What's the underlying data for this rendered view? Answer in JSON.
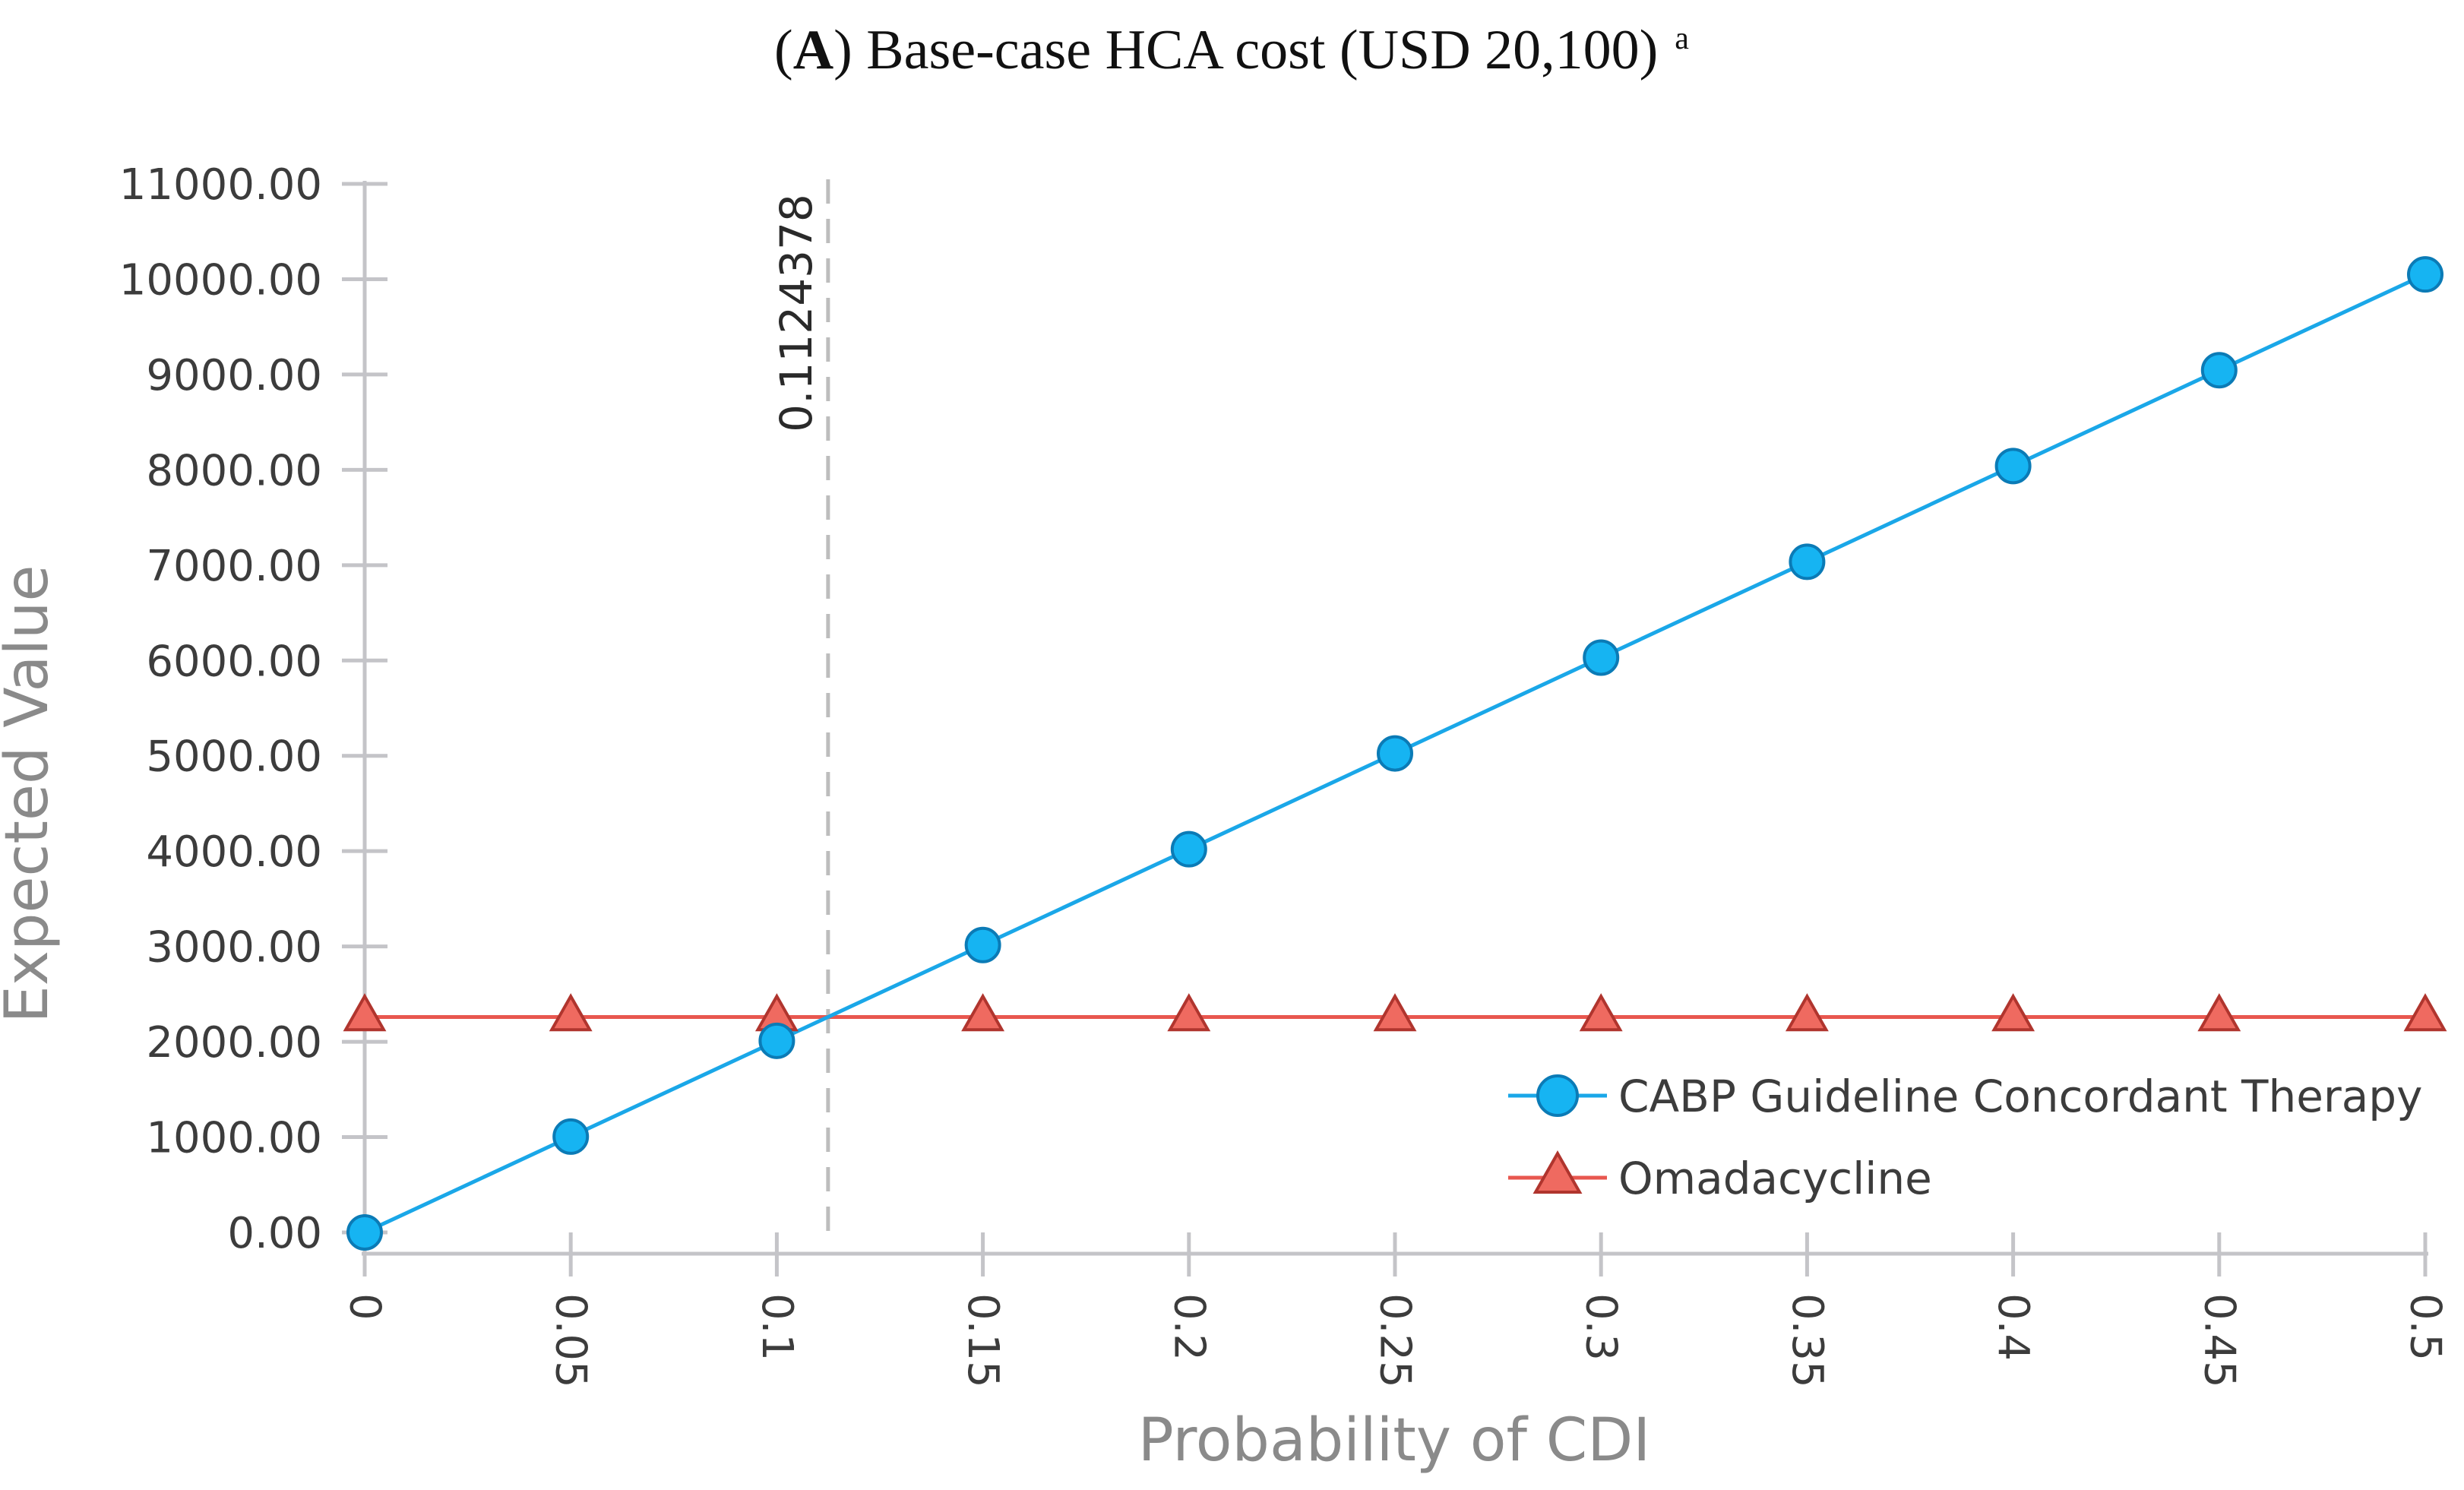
{
  "chart_data": {
    "type": "line",
    "title": {
      "prefix": "(",
      "bold": "A",
      "rest": ") Base-case HCA cost (USD 20,100)",
      "superscript": "a"
    },
    "xlabel": "Probability of CDI",
    "ylabel": "Expected Value",
    "x": [
      0,
      0.05,
      0.1,
      0.15,
      0.2,
      0.25,
      0.3,
      0.35,
      0.4,
      0.45,
      0.5
    ],
    "x_tick_labels": [
      "0",
      "0.05",
      "0.1",
      "0.15",
      "0.2",
      "0.25",
      "0.3",
      "0.35",
      "0.4",
      "0.45",
      "0.5"
    ],
    "xlim": [
      0,
      0.5
    ],
    "ylim": [
      0,
      11000
    ],
    "y_ticks": [
      0,
      1000,
      2000,
      3000,
      4000,
      5000,
      6000,
      7000,
      8000,
      9000,
      10000,
      11000
    ],
    "y_tick_labels": [
      "0.00",
      "1000.00",
      "2000.00",
      "3000.00",
      "4000.00",
      "5000.00",
      "6000.00",
      "7000.00",
      "8000.00",
      "9000.00",
      "10000.00",
      "11000.00"
    ],
    "grid": false,
    "legend_position": "bottom-right",
    "series": [
      {
        "name": "CABP Guideline Concordant Therapy",
        "marker": "circle",
        "color": "#1aa7e8",
        "fill": "#16b4f2",
        "values": [
          0,
          1005,
          2010,
          3015,
          4020,
          5025,
          6030,
          7035,
          8040,
          9045,
          10050
        ]
      },
      {
        "name": "Omadacycline",
        "marker": "triangle",
        "color": "#e8574f",
        "fill": "#ef6a60",
        "values": [
          2260,
          2260,
          2260,
          2260,
          2260,
          2260,
          2260,
          2260,
          2260,
          2260,
          2260
        ]
      }
    ],
    "threshold": {
      "x": 0.1124378,
      "label": "0.1124378",
      "color": "#bdbdbd"
    },
    "axis_color": "#c4c4c8"
  }
}
